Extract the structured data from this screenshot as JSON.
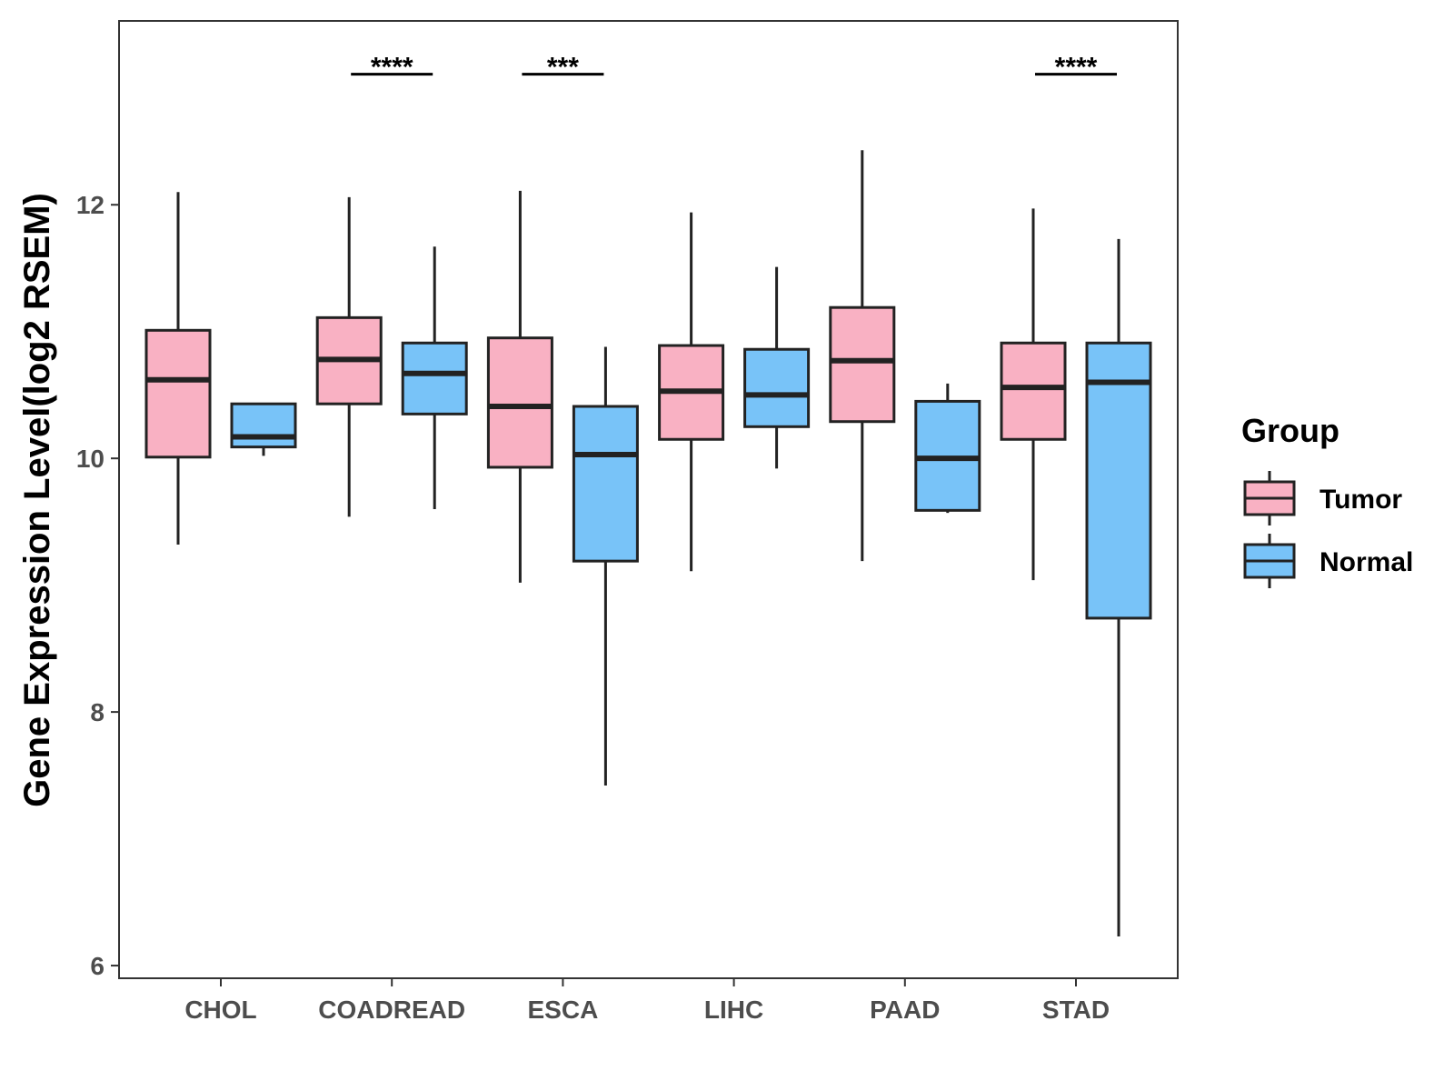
{
  "chart_data": {
    "type": "boxplot",
    "title": "",
    "xlabel": "",
    "ylabel": "Gene Expression Level(log2 RSEM)",
    "ylim": [
      5.9,
      13.45
    ],
    "yticks": [
      6,
      8,
      10,
      12
    ],
    "ytick_labels": [
      "6",
      "8",
      "10",
      "12"
    ],
    "categories": [
      "CHOL",
      "COADREAD",
      "ESCA",
      "LIHC",
      "PAAD",
      "STAD"
    ],
    "series": [
      {
        "name": "Tumor",
        "color": "#F9B1C3",
        "boxes": [
          {
            "min": 9.32,
            "q1": 10.01,
            "median": 10.62,
            "q3": 11.01,
            "max": 12.1
          },
          {
            "min": 9.54,
            "q1": 10.43,
            "median": 10.78,
            "q3": 11.11,
            "max": 12.06
          },
          {
            "min": 9.02,
            "q1": 9.93,
            "median": 10.41,
            "q3": 10.95,
            "max": 12.11
          },
          {
            "min": 9.11,
            "q1": 10.15,
            "median": 10.53,
            "q3": 10.89,
            "max": 11.94
          },
          {
            "min": 9.19,
            "q1": 10.29,
            "median": 10.77,
            "q3": 11.19,
            "max": 12.43
          },
          {
            "min": 9.04,
            "q1": 10.15,
            "median": 10.56,
            "q3": 10.91,
            "max": 11.97
          }
        ]
      },
      {
        "name": "Normal",
        "color": "#78C3F8",
        "boxes": [
          {
            "min": 10.02,
            "q1": 10.09,
            "median": 10.17,
            "q3": 10.43,
            "max": 10.43
          },
          {
            "min": 9.6,
            "q1": 10.35,
            "median": 10.67,
            "q3": 10.91,
            "max": 11.67
          },
          {
            "min": 7.42,
            "q1": 9.19,
            "median": 10.03,
            "q3": 10.41,
            "max": 10.88
          },
          {
            "min": 9.92,
            "q1": 10.25,
            "median": 10.5,
            "q3": 10.86,
            "max": 11.51
          },
          {
            "min": 9.57,
            "q1": 9.59,
            "median": 10.0,
            "q3": 10.45,
            "max": 10.59
          },
          {
            "min": 6.23,
            "q1": 8.74,
            "median": 10.6,
            "q3": 10.91,
            "max": 11.73
          }
        ]
      }
    ],
    "annotations": [
      {
        "category": "COADREAD",
        "label": "****",
        "y": 13.03
      },
      {
        "category": "ESCA",
        "label": "***",
        "y": 13.03
      },
      {
        "category": "STAD",
        "label": "****",
        "y": 13.03
      }
    ],
    "legend": {
      "title": "Group",
      "position": "right",
      "entries": [
        "Tumor",
        "Normal"
      ]
    },
    "grid": false
  }
}
